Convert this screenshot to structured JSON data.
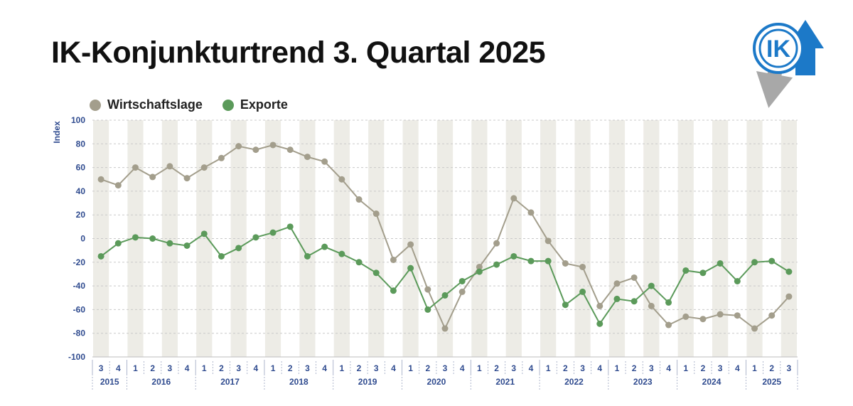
{
  "title": "IK-Konjunkturtrend 3. Quartal 2025",
  "logo": {
    "icon": "ik-logo-icon",
    "text": "IK"
  },
  "colors": {
    "wirtschaftslage": "#a39e8c",
    "exporte": "#5b9a5a",
    "axis_text": "#2f4b8f",
    "band": "#edece6",
    "logo_blue": "#1c79c8",
    "logo_gray": "#a8a8a8"
  },
  "chart_data": {
    "type": "line",
    "title": "IK-Konjunkturtrend 3. Quartal 2025",
    "ylabel": "Index",
    "ylim": [
      -100,
      100
    ],
    "yticks": [
      100,
      80,
      60,
      40,
      20,
      0,
      -20,
      -40,
      -60,
      -80,
      -100
    ],
    "grid": true,
    "legend_position": "top-left",
    "categories": [
      "3",
      "4",
      "1",
      "2",
      "3",
      "4",
      "1",
      "2",
      "3",
      "4",
      "1",
      "2",
      "3",
      "4",
      "1",
      "2",
      "3",
      "4",
      "1",
      "2",
      "3",
      "4",
      "1",
      "2",
      "3",
      "4",
      "1",
      "2",
      "3",
      "4",
      "1",
      "2",
      "3",
      "4",
      "1",
      "2",
      "3",
      "4",
      "1",
      "2",
      "3"
    ],
    "years": [
      {
        "label": "2015",
        "start": 0,
        "end": 1
      },
      {
        "label": "2016",
        "start": 2,
        "end": 5
      },
      {
        "label": "2017",
        "start": 6,
        "end": 9
      },
      {
        "label": "2018",
        "start": 10,
        "end": 13
      },
      {
        "label": "2019",
        "start": 14,
        "end": 17
      },
      {
        "label": "2020",
        "start": 18,
        "end": 21
      },
      {
        "label": "2021",
        "start": 22,
        "end": 25
      },
      {
        "label": "2022",
        "start": 26,
        "end": 29
      },
      {
        "label": "2023",
        "start": 30,
        "end": 33
      },
      {
        "label": "2024",
        "start": 34,
        "end": 37
      },
      {
        "label": "2025",
        "start": 38,
        "end": 40
      }
    ],
    "series": [
      {
        "name": "Wirtschaftslage",
        "color": "#a39e8c",
        "values": [
          50,
          45,
          60,
          52,
          61,
          51,
          60,
          68,
          78,
          75,
          79,
          75,
          69,
          65,
          50,
          33,
          21,
          -18,
          -5,
          -43,
          -76,
          -45,
          -24,
          -4,
          34,
          22,
          -2,
          -21,
          -24,
          -57,
          -38,
          -33,
          -57,
          -73,
          -66,
          -68,
          -64,
          -65,
          -76,
          -65,
          -49
        ]
      },
      {
        "name": "Exporte",
        "color": "#5b9a5a",
        "values": [
          -15,
          -4,
          1,
          0,
          -4,
          -6,
          4,
          -15,
          -8,
          1,
          5,
          10,
          -15,
          -7,
          -13,
          -20,
          -29,
          -44,
          -25,
          -60,
          -48,
          -36,
          -28,
          -22,
          -15,
          -19,
          -19,
          -56,
          -45,
          -72,
          -51,
          -53,
          -40,
          -54,
          -27,
          -29,
          -21,
          -36,
          -20,
          -19,
          -28
        ]
      }
    ]
  }
}
